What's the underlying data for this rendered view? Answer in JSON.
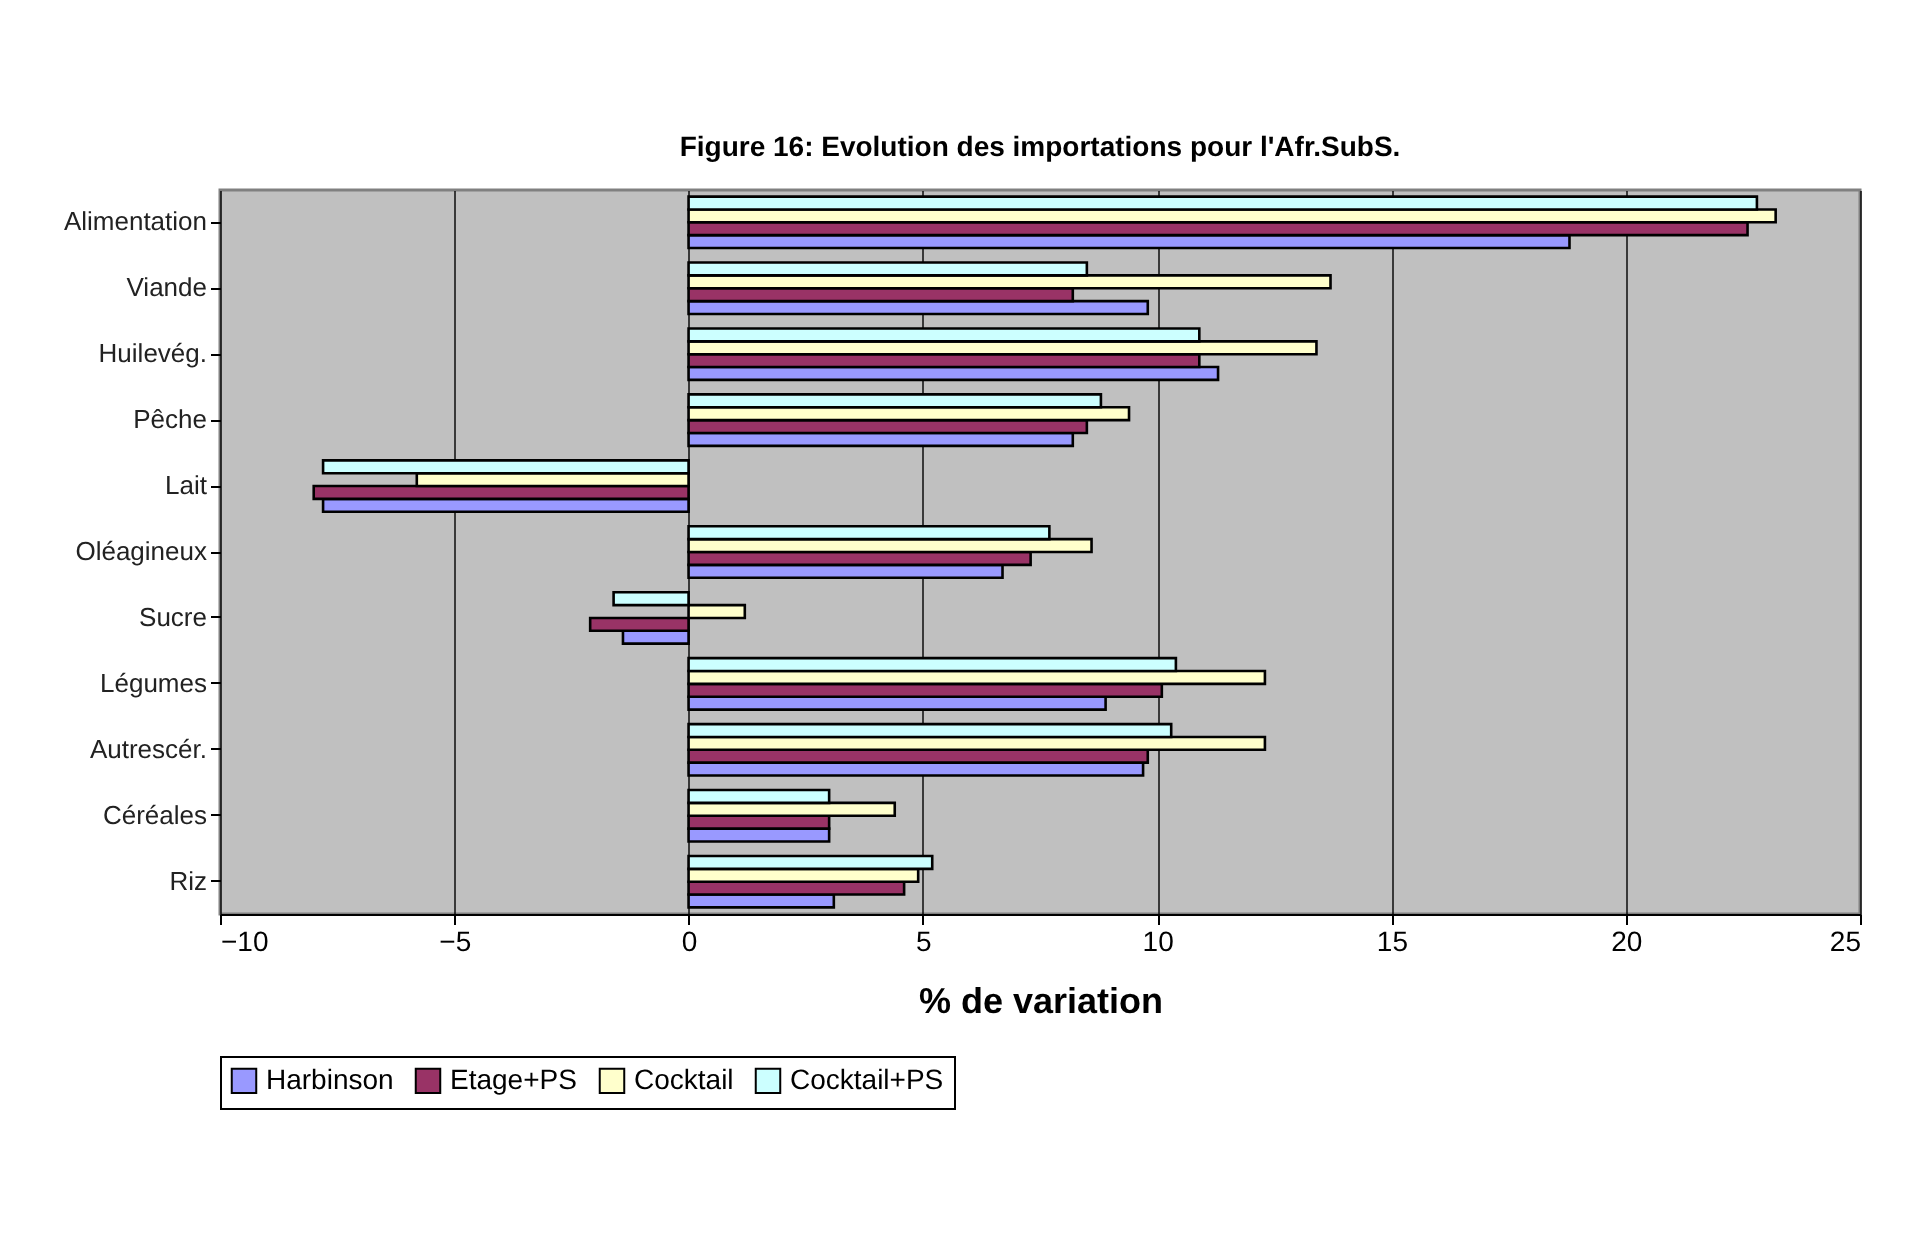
{
  "chart_data": {
    "type": "bar",
    "orientation": "horizontal",
    "title": "Figure 16: Evolution des importations pour l'Afr.SubS.",
    "xlabel": "% de variation",
    "categories": [
      "Alimentation",
      "Viande",
      "Huilevég.",
      "Pêche",
      "Lait",
      "Oléagineux",
      "Sucre",
      "Légumes",
      "Autrescér.",
      "Céréales",
      "Riz"
    ],
    "series": [
      {
        "name": "Harbinson",
        "color": "#9999ff",
        "values": [
          18.8,
          9.8,
          11.3,
          8.2,
          -7.8,
          6.7,
          -1.4,
          8.9,
          9.7,
          3.0,
          3.1
        ]
      },
      {
        "name": "Etage+PS",
        "color": "#993366",
        "values": [
          22.6,
          8.2,
          10.9,
          8.5,
          -8.0,
          7.3,
          -2.1,
          10.1,
          9.8,
          3.0,
          4.6
        ]
      },
      {
        "name": "Cocktail",
        "color": "#ffffcc",
        "values": [
          23.2,
          13.7,
          13.4,
          9.4,
          -5.8,
          8.6,
          1.2,
          12.3,
          12.3,
          4.4,
          4.9
        ]
      },
      {
        "name": "Cocktail+PS",
        "color": "#ccffff",
        "values": [
          22.8,
          8.5,
          10.9,
          8.8,
          -7.8,
          7.7,
          -1.6,
          10.4,
          10.3,
          3.0,
          5.2
        ]
      }
    ],
    "xlim": [
      -10,
      25
    ],
    "xticks": [
      -10,
      -5,
      0,
      5,
      10,
      15,
      20,
      25
    ],
    "grid": "x",
    "legend": "bottom"
  }
}
